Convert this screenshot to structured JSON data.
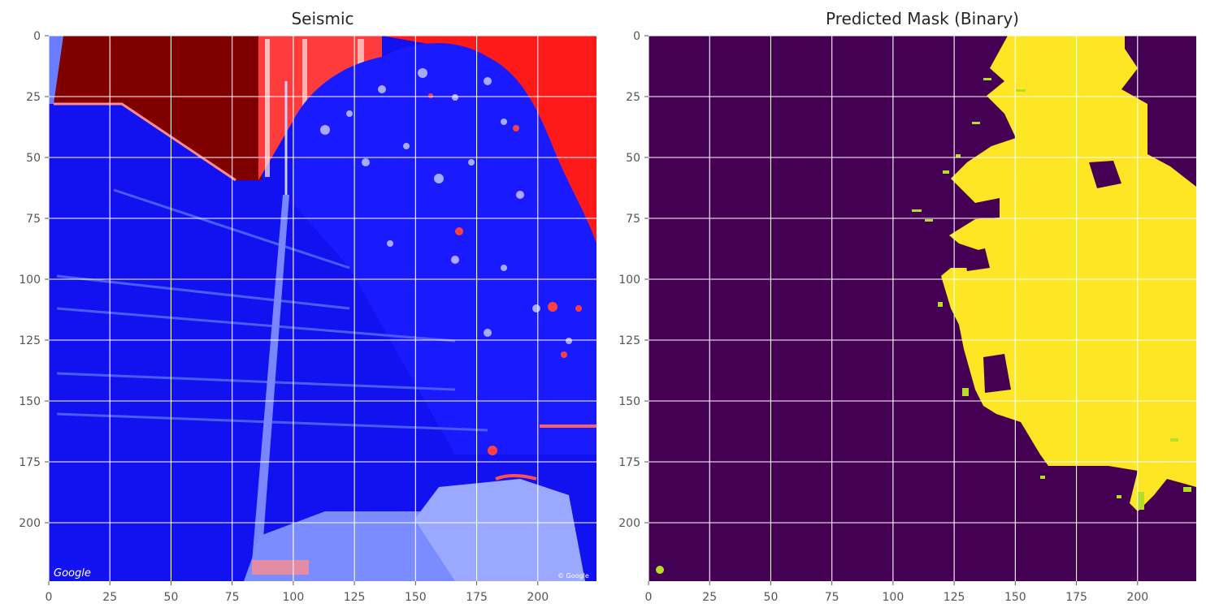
{
  "chart_data": [
    {
      "type": "heatmap",
      "title": "Seismic",
      "colormap": "seismic",
      "xlim": [
        0,
        224
      ],
      "ylim": [
        224,
        0
      ],
      "xticks": [
        0,
        25,
        50,
        75,
        100,
        125,
        150,
        175,
        200
      ],
      "yticks": [
        0,
        25,
        50,
        75,
        100,
        125,
        150,
        175,
        200
      ],
      "grid": true,
      "watermark_text": [
        "Google",
        "© Google"
      ]
    },
    {
      "type": "heatmap",
      "title": "Predicted Mask (Binary)",
      "colormap": "viridis",
      "values_range": [
        0,
        1
      ],
      "colors": {
        "background": "#440154",
        "foreground": "#fde725",
        "edge": "#b5de2b"
      },
      "xlim": [
        0,
        224
      ],
      "ylim": [
        224,
        0
      ],
      "xticks": [
        0,
        25,
        50,
        75,
        100,
        125,
        150,
        175,
        200
      ],
      "yticks": [
        0,
        25,
        50,
        75,
        100,
        125,
        150,
        175,
        200
      ],
      "grid": true
    }
  ]
}
